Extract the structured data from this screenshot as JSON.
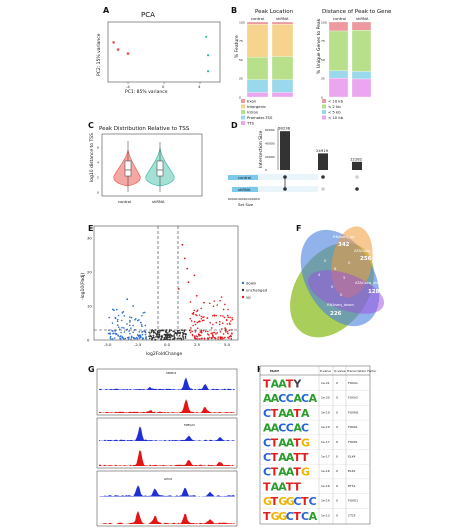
{
  "panels": {
    "A": "A",
    "B": "B",
    "C": "C",
    "D": "D",
    "E": "E",
    "F": "F",
    "G": "G",
    "H": "H"
  },
  "colors": {
    "control_red": "#e8524b",
    "shrna_teal": "#2fb7a6",
    "up": "#e41a1c",
    "down": "#2f6fd0",
    "unchanged": "#333333",
    "track_blue": "#1f2fd6",
    "track_red": "#e31515"
  },
  "pca": {
    "title": "PCA",
    "xlabel": "PC1: 85% variance",
    "ylabel": "PC2: 15% variance",
    "xticks": [
      "-4",
      "0",
      "4"
    ],
    "points_control": [
      [
        -5.6,
        1.2
      ],
      [
        -5.1,
        0.3
      ],
      [
        -4.0,
        -0.2
      ]
    ],
    "points_shrna": [
      [
        4.7,
        1.9
      ],
      [
        4.9,
        -0.4
      ],
      [
        4.9,
        -2.4
      ]
    ]
  },
  "peak_location": {
    "title": "Peak Location",
    "groups": [
      "control",
      "shRNA"
    ],
    "ylabel": "% Feature",
    "yticks": [
      "0",
      "25",
      "50",
      "75",
      "100"
    ],
    "legend": [
      "Exon",
      "Intergenic",
      "Intron",
      "Promoter-TSS",
      "TTS"
    ],
    "colors": [
      "#ec9aa0",
      "#f7d48e",
      "#b8e08a",
      "#9ad8ec",
      "#eaa6ee"
    ],
    "fractions": [
      [
        0.03,
        0.44,
        0.3,
        0.17,
        0.06
      ],
      [
        0.03,
        0.43,
        0.31,
        0.17,
        0.06
      ]
    ]
  },
  "distance": {
    "title": "Distance of Peak to Gene",
    "groups": [
      "control",
      "shRNA"
    ],
    "ylabel": "% Unique Genes to Peak",
    "yticks": [
      "0",
      "25",
      "50",
      "75",
      "100"
    ],
    "legend": [
      "< 10 kb",
      "< 2 kb",
      "< 5 kb",
      "< 10 kb"
    ],
    "colors": [
      "#ec9aa0",
      "#b8e08a",
      "#9ad8ec",
      "#eaa6ee"
    ],
    "fractions": [
      [
        0.12,
        0.53,
        0.1,
        0.25
      ],
      [
        0.11,
        0.55,
        0.1,
        0.24
      ]
    ]
  },
  "violin": {
    "title": "Peak Distribution Relative to TSS",
    "ylabel": "log10 distance to TSS",
    "yticks": [
      "0",
      "2",
      "4",
      "6"
    ],
    "groups": [
      "control",
      "shRNA"
    ]
  },
  "upset": {
    "ylabel": "Intersection Size",
    "yticks": [
      "0",
      "20000",
      "40000",
      "60000"
    ],
    "bars": [
      58238,
      24919,
      12282
    ],
    "bar_labels": [
      "58238",
      "24919",
      "12282"
    ],
    "sets": [
      "control",
      "shRNA"
    ],
    "setsize_label": "Set Size",
    "setsize_ticks": [
      "60000",
      "40000",
      "20000",
      "0"
    ]
  },
  "volcano": {
    "xlabel": "log2FoldChange",
    "ylabel": "-log10(Padj)",
    "xticks": [
      "-5.0",
      "-2.5",
      "0.0",
      "2.5",
      "5.0"
    ],
    "yticks": [
      "0",
      "10",
      "20",
      "30"
    ],
    "legend": [
      "down",
      "unchanged",
      "up"
    ]
  },
  "venn": {
    "sets": [
      "RNAseq_up",
      "ATACseq_up",
      "ATACseq_down",
      "RNAseq_down"
    ],
    "counts": {
      "rna_up_only": "342",
      "atac_up_only": "256",
      "atac_down_only": "128",
      "rna_down_only": "226",
      "r1": "0",
      "r2": "4",
      "r3": "8",
      "r4": "5",
      "r5": "0",
      "r6": "0",
      "r7": "0"
    },
    "colors": [
      "#4a7fe0",
      "#f29a3a",
      "#9d4be0",
      "#9bc53d"
    ]
  },
  "tracks": {
    "genes": [
      "SMPD1",
      "MMS22",
      "GPC6"
    ]
  },
  "motifs": {
    "headers": [
      "Motif",
      "P-value",
      "Q-value",
      "Transcription Factor"
    ],
    "rows": [
      {
        "p": "1e-21",
        "q": "0",
        "tf": "FOXA1"
      },
      {
        "p": "1e-20",
        "q": "0",
        "tf": "FOXA2"
      },
      {
        "p": "1e-19",
        "q": "0",
        "tf": "FOXM1"
      },
      {
        "p": "1e-19",
        "q": "0",
        "tf": "FOXK1"
      },
      {
        "p": "1e-17",
        "q": "0",
        "tf": "FOXP1"
      },
      {
        "p": "1e-17",
        "q": "0",
        "tf": "ELK4"
      },
      {
        "p": "1e-16",
        "q": "0",
        "tf": "ELK1"
      },
      {
        "p": "1e-16",
        "q": "0",
        "tf": "ETS1"
      },
      {
        "p": "1e-14",
        "q": "0",
        "tf": "FOXO1"
      },
      {
        "p": "1e-13",
        "q": "0",
        "tf": "CTCF"
      }
    ]
  }
}
